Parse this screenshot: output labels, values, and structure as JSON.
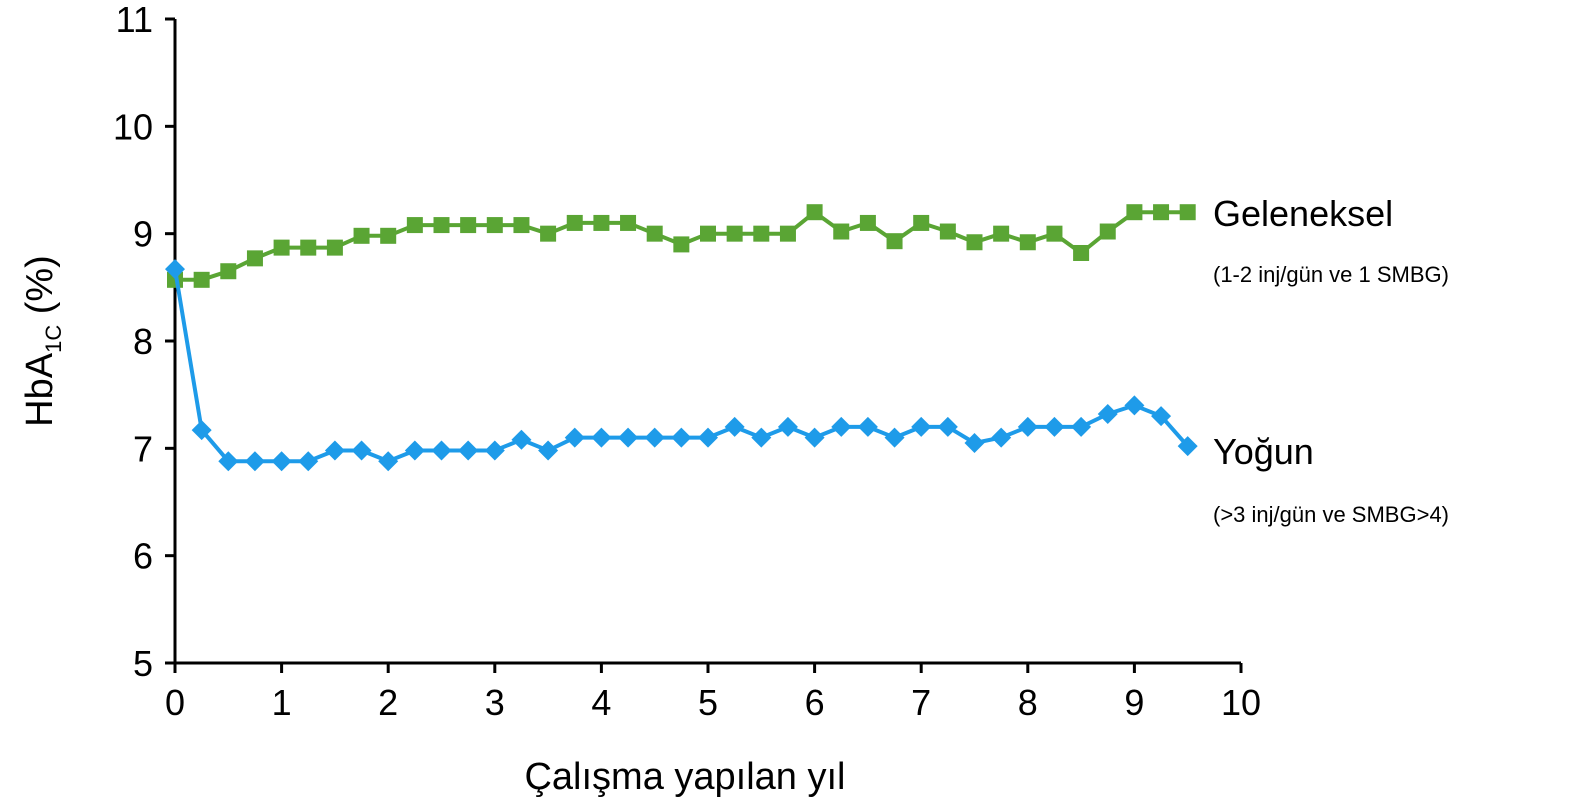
{
  "chart_data": {
    "type": "line",
    "xlabel": "Çalışma yapılan yıl",
    "ylabel": {
      "prefix": "HbA",
      "subscript": "1C",
      "suffix": " (%)"
    },
    "xlim": [
      0,
      10
    ],
    "ylim": [
      5,
      11
    ],
    "xticks": [
      "0",
      "1",
      "2",
      "3",
      "4",
      "5",
      "6",
      "7",
      "8",
      "9",
      "10"
    ],
    "yticks": [
      "5",
      "6",
      "7",
      "8",
      "9",
      "10",
      "11"
    ],
    "grid": false,
    "series": [
      {
        "name": "Geleneksel",
        "note": "(1-2 inj/gün ve 1 SMBG)",
        "color": "#5aa534",
        "marker": "square",
        "x": [
          0,
          0.25,
          0.5,
          0.75,
          1,
          1.25,
          1.5,
          1.75,
          2,
          2.25,
          2.5,
          2.75,
          3,
          3.25,
          3.5,
          3.75,
          4,
          4.25,
          4.5,
          4.75,
          5,
          5.25,
          5.5,
          5.75,
          6,
          6.25,
          6.5,
          6.75,
          7,
          7.25,
          7.5,
          7.75,
          8,
          8.25,
          8.5,
          8.75,
          9,
          9.25,
          9.5
        ],
        "values": [
          8.57,
          8.57,
          8.65,
          8.77,
          8.87,
          8.87,
          8.87,
          8.98,
          8.98,
          9.08,
          9.08,
          9.08,
          9.08,
          9.08,
          9.0,
          9.1,
          9.1,
          9.1,
          9.0,
          8.9,
          9.0,
          9.0,
          9.0,
          9.0,
          9.2,
          9.02,
          9.1,
          8.93,
          9.1,
          9.02,
          8.92,
          9.0,
          8.92,
          9.0,
          8.82,
          9.02,
          9.2,
          9.2,
          9.2
        ]
      },
      {
        "name": "Yoğun",
        "note": "(>3 inj/gün ve SMBG>4)",
        "color": "#1e9be9",
        "marker": "diamond",
        "x": [
          0,
          0.25,
          0.5,
          0.75,
          1,
          1.25,
          1.5,
          1.75,
          2,
          2.25,
          2.5,
          2.75,
          3,
          3.25,
          3.5,
          3.75,
          4,
          4.25,
          4.5,
          4.75,
          5,
          5.25,
          5.5,
          5.75,
          6,
          6.25,
          6.5,
          6.75,
          7,
          7.25,
          7.5,
          7.75,
          8,
          8.25,
          8.5,
          8.75,
          9,
          9.25,
          9.5
        ],
        "values": [
          8.67,
          7.17,
          6.88,
          6.88,
          6.88,
          6.88,
          6.98,
          6.98,
          6.88,
          6.98,
          6.98,
          6.98,
          6.98,
          7.08,
          6.98,
          7.1,
          7.1,
          7.1,
          7.1,
          7.1,
          7.1,
          7.2,
          7.1,
          7.2,
          7.1,
          7.2,
          7.2,
          7.1,
          7.2,
          7.2,
          7.05,
          7.1,
          7.2,
          7.2,
          7.2,
          7.32,
          7.4,
          7.3,
          7.02
        ]
      }
    ]
  }
}
